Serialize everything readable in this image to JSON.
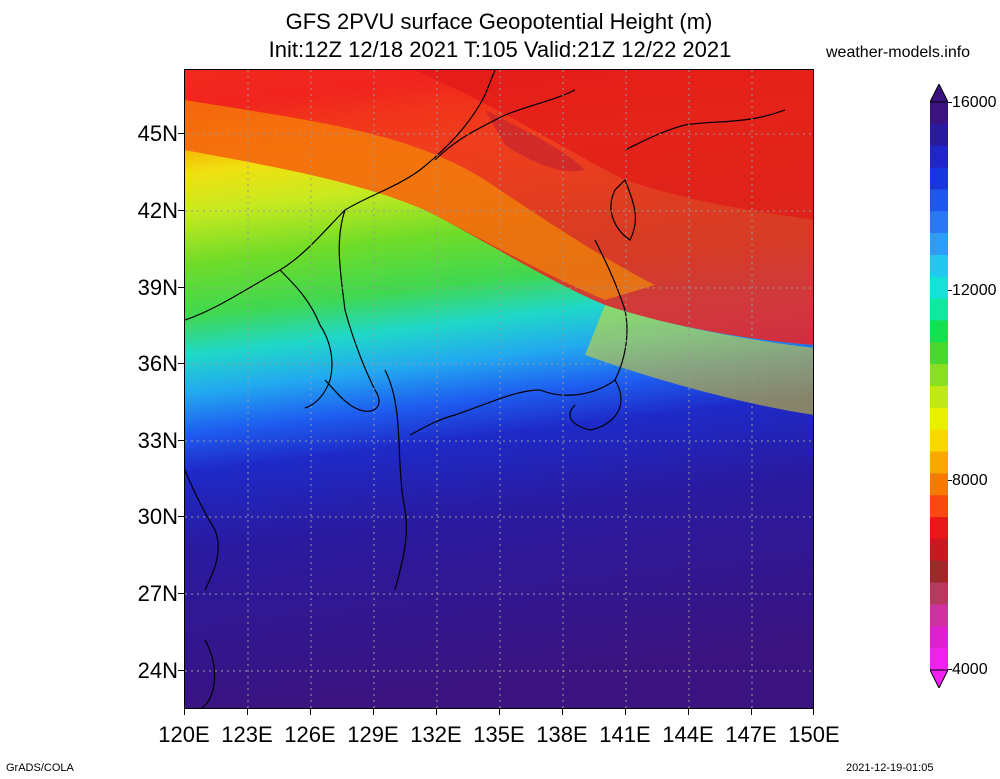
{
  "title": {
    "line1": "GFS 2PVU surface Geopotential Height (m)",
    "line2": "Init:12Z 12/18 2021 T:105 Valid:21Z 12/22 2021"
  },
  "site": "weather-models.info",
  "map": {
    "lat_labels": [
      "45N",
      "42N",
      "39N",
      "36N",
      "33N",
      "30N",
      "27N",
      "24N"
    ],
    "lon_labels": [
      "120E",
      "123E",
      "126E",
      "129E",
      "132E",
      "135E",
      "138E",
      "141E",
      "144E",
      "147E",
      "150E"
    ]
  },
  "colorbar": {
    "labels": [
      "16000",
      "12000",
      "8000",
      "4000"
    ],
    "colors": [
      "#3a1380",
      "#2a1aa0",
      "#1f25c8",
      "#1836e0",
      "#1e56f0",
      "#2a78f5",
      "#2a9ef8",
      "#22c8f0",
      "#16e0d8",
      "#10e8a0",
      "#14e050",
      "#4ad82a",
      "#8ae020",
      "#c0e818",
      "#e8f000",
      "#f8d800",
      "#f8a800",
      "#f87800",
      "#f84a10",
      "#e81818",
      "#c81820",
      "#a02828",
      "#b83860",
      "#d030a0",
      "#e020d0",
      "#f020f0"
    ]
  },
  "footer": {
    "left": "GrADS/COLA",
    "right": "2021-12-19-01:05"
  }
}
